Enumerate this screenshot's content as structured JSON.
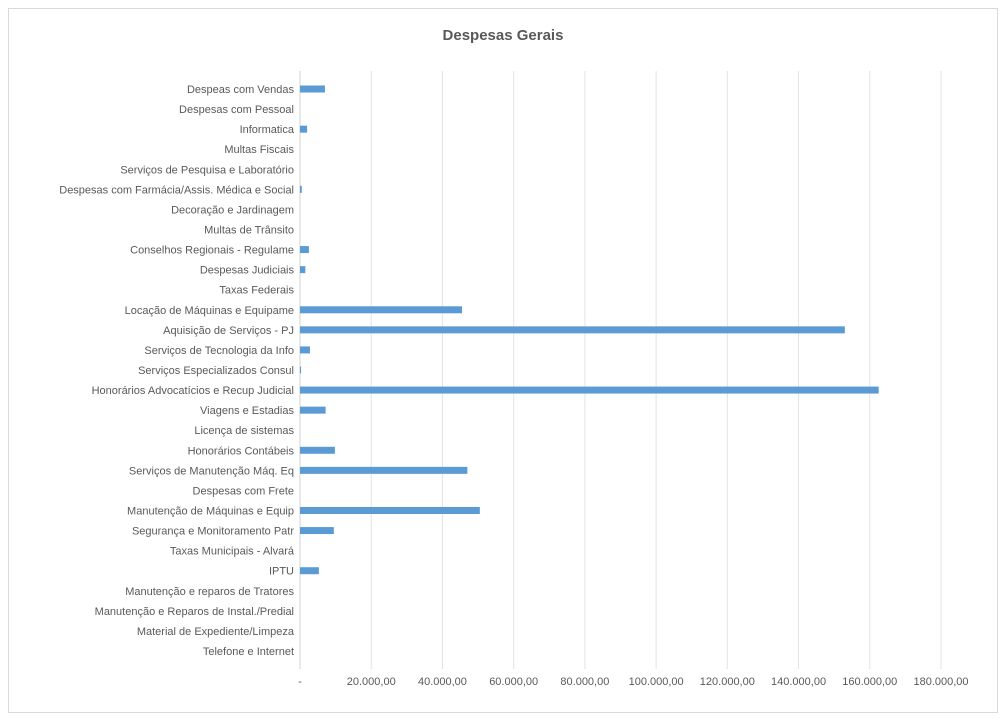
{
  "chart_data": {
    "type": "bar",
    "orientation": "horizontal",
    "title": "Despesas Gerais",
    "categories": [
      "Despeas com Vendas",
      "Despesas com Pessoal",
      "Informatica",
      "Multas Fiscais",
      "Serviços de Pesquisa e Laboratório",
      "Despesas com Farmácia/Assis. Médica e Social",
      "Decoração e Jardinagem",
      "Multas de Trânsito",
      "Conselhos Regionais - Regulame",
      "Despesas Judiciais",
      "Taxas Federais",
      "Locação de Máquinas e Equipame",
      "Aquisição de Serviços - PJ",
      "Serviços de Tecnologia da Info",
      "Serviços Especializados Consul",
      "Honorários Advocatícios e Recup Judicial",
      "Viagens e Estadias",
      "Licença de sistemas",
      "Honorários Contábeis",
      "Serviços de Manutenção Máq. Eq",
      "Despesas com Frete",
      "Manutenção de Máquinas e Equip",
      "Segurança e Monitoramento Patr",
      "Taxas Municipais - Alvará",
      "IPTU",
      "Manutenção e reparos de Tratores",
      "Manutenção e Reparos de Instal./Predial",
      "Material de Expediente/Limpeza",
      "Telefone e Internet"
    ],
    "values": [
      7000,
      0,
      2000,
      0,
      0,
      500,
      0,
      0,
      2500,
      1500,
      0,
      45500,
      153000,
      2800,
      300,
      162500,
      7200,
      0,
      9800,
      47000,
      0,
      50500,
      9500,
      0,
      5300,
      0,
      0,
      0,
      0
    ],
    "xlim": [
      0,
      180000
    ],
    "x_ticks": [
      "-",
      "20.000,00",
      "40.000,00",
      "60.000,00",
      "80.000,00",
      "100.000,00",
      "120.000,00",
      "140.000,00",
      "160.000,00",
      "180.000,00"
    ],
    "bar_color": "#5b9bd5",
    "grid": true,
    "legend": "none"
  }
}
